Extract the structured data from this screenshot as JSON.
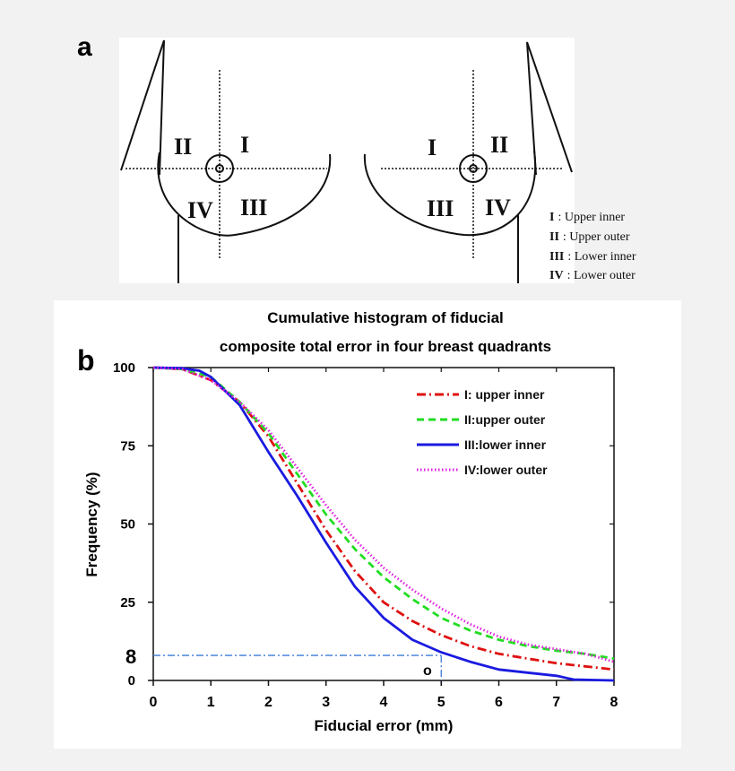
{
  "panel_a": {
    "label": "a",
    "quadrants": {
      "left": {
        "upper_left": "II",
        "upper_right": "I",
        "lower_left": "IV",
        "lower_right": "III"
      },
      "right": {
        "upper_left": "I",
        "upper_right": "II",
        "lower_left": "III",
        "lower_right": "IV"
      }
    },
    "legend": [
      {
        "key": "I",
        "text": ": Upper inner"
      },
      {
        "key": "II",
        "text": ": Upper outer"
      },
      {
        "key": "III",
        "text": ": Lower inner"
      },
      {
        "key": "IV",
        "text": ": Lower outer"
      }
    ]
  },
  "panel_b": {
    "label": "b",
    "title_line1": "Cumulative histogram of fiducial",
    "title_line2": "composite total error in four breast quadrants",
    "marker_y_label": "8",
    "marker_x_label": "o"
  },
  "chart_data": {
    "type": "line",
    "title": "Cumulative histogram of fiducial composite total error in four breast quadrants",
    "xlabel": "Fiducial error (mm)",
    "ylabel": "Frequency (%)",
    "xlim": [
      0,
      8
    ],
    "ylim": [
      0,
      100
    ],
    "xticks": [
      "0",
      "1",
      "2",
      "3",
      "4",
      "5",
      "6",
      "7",
      "8"
    ],
    "yticks": [
      {
        "value": 0,
        "label": "0"
      },
      {
        "value": 25,
        "label": "25"
      },
      {
        "value": 50,
        "label": "50"
      },
      {
        "value": 75,
        "label": "75"
      },
      {
        "value": 100,
        "label": "100"
      }
    ],
    "reference_point": {
      "x": 5,
      "y": 8
    },
    "series": [
      {
        "name": "I: upper inner",
        "color": "#e01010",
        "style": "dashdot",
        "x": [
          0,
          0.5,
          1.0,
          1.5,
          2.0,
          2.5,
          3.0,
          3.5,
          4.0,
          4.5,
          5.0,
          5.5,
          6.0,
          6.5,
          7.0,
          7.5,
          8.0
        ],
        "y": [
          100,
          99.5,
          96,
          89,
          78,
          63,
          48,
          35,
          25,
          19,
          14.5,
          11,
          8.5,
          7,
          5.5,
          4.5,
          3.5
        ]
      },
      {
        "name": "II:upper outer",
        "color": "#22dd22",
        "style": "dashed",
        "x": [
          0,
          0.5,
          1.0,
          1.5,
          2.0,
          2.5,
          3.0,
          3.5,
          4.0,
          4.5,
          5.0,
          5.5,
          6.0,
          6.5,
          7.0,
          7.5,
          8.0
        ],
        "y": [
          100,
          99.5,
          97,
          89,
          79,
          66,
          53,
          42,
          33,
          26,
          20,
          16,
          13,
          11,
          9.5,
          8.5,
          7
        ]
      },
      {
        "name": "III:lower inner",
        "color": "#1a1ae0",
        "style": "solid",
        "x": [
          0,
          0.5,
          0.8,
          1.0,
          1.5,
          2.0,
          2.5,
          3.0,
          3.5,
          4.0,
          4.5,
          5.0,
          5.5,
          6.0,
          6.5,
          7.0,
          7.3,
          8.0
        ],
        "y": [
          100,
          99.8,
          99,
          97,
          88,
          73,
          59,
          44,
          30,
          20,
          13,
          9,
          6,
          3.5,
          2.5,
          1.5,
          0.3,
          0
        ]
      },
      {
        "name": "IV:lower outer",
        "color": "#e020e0",
        "style": "dotted",
        "x": [
          0,
          0.5,
          1.0,
          1.5,
          2.0,
          2.5,
          3.0,
          3.5,
          4.0,
          4.5,
          5.0,
          5.5,
          6.0,
          6.5,
          7.0,
          7.5,
          8.0
        ],
        "y": [
          100,
          99.5,
          96,
          89,
          80,
          68,
          56,
          45,
          36,
          29,
          23,
          18,
          14,
          11.5,
          10,
          8.5,
          6
        ]
      }
    ]
  }
}
